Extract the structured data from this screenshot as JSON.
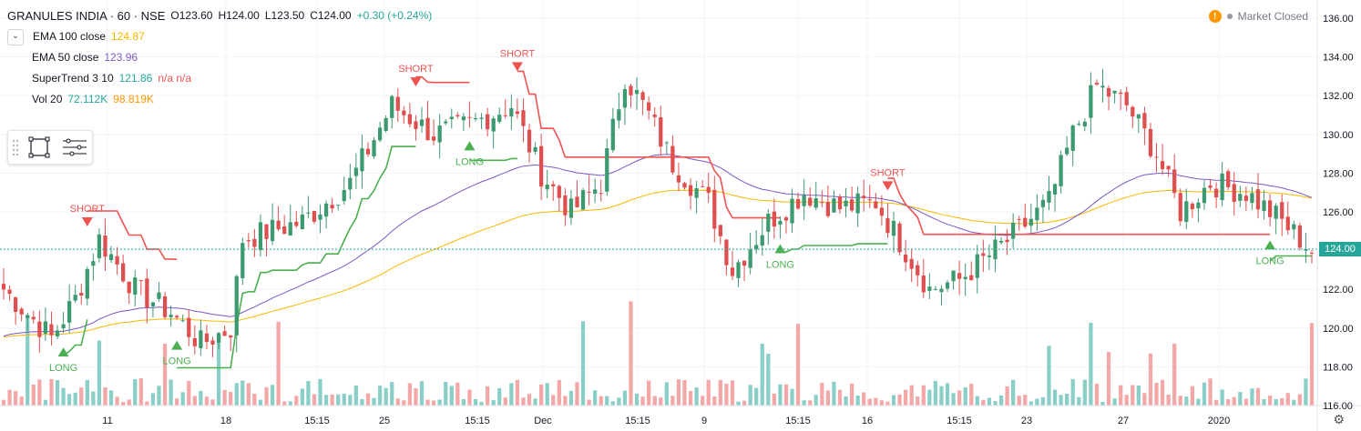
{
  "header": {
    "symbol": "GRANULES INDIA · 60 · NSE",
    "open": "O123.60",
    "high": "H124.00",
    "low": "L123.50",
    "close": "C124.00",
    "change": "+0.30 (+0.24%)"
  },
  "status": {
    "text": "Market Closed"
  },
  "indicators": [
    {
      "name": "EMA 100 close",
      "value": "124.87",
      "color": "#f5b800"
    },
    {
      "name": "EMA 50 close",
      "value": "123.96",
      "color": "#7e57c2"
    },
    {
      "name": "SuperTrend 3 10",
      "value": "121.86",
      "extra": "n/a n/a",
      "color": "#26a69a"
    },
    {
      "name": "Vol 20",
      "value": "72.112K",
      "extra": "98.819K",
      "color": "#26a69a"
    }
  ],
  "last_price_label": "124.00",
  "colors": {
    "up": "#3d9970",
    "down": "#e04f4f",
    "ema100": "#f5b800",
    "ema50": "#7e57c2",
    "st_up": "#4caf50",
    "st_down": "#ef5350",
    "vol_up": "#89cfc8",
    "vol_down": "#f4a7a7"
  },
  "chart_data": {
    "type": "candlestick",
    "title": "GRANULES INDIA · 60 · NSE",
    "ylim": [
      116,
      136.5
    ],
    "y_ticks": [
      "116.00",
      "118.00",
      "120.00",
      "122.00",
      "124.00",
      "126.00",
      "128.00",
      "130.00",
      "132.00",
      "134.00",
      "136.00"
    ],
    "x_ticks": [
      "11",
      "18",
      "15:15",
      "25",
      "15:15",
      "Dec",
      "15:15",
      "9",
      "15:15",
      "16",
      "15:15",
      "23",
      "27",
      "2020"
    ],
    "bars_count": 220,
    "anchor_closes": [
      [
        0,
        122.0
      ],
      [
        8,
        119.5
      ],
      [
        12,
        121.5
      ],
      [
        16,
        124.6
      ],
      [
        22,
        122.0
      ],
      [
        28,
        120.8
      ],
      [
        33,
        119.2
      ],
      [
        38,
        120.0
      ],
      [
        40,
        124.6
      ],
      [
        50,
        125.5
      ],
      [
        58,
        127.5
      ],
      [
        65,
        131.5
      ],
      [
        72,
        130.0
      ],
      [
        78,
        130.5
      ],
      [
        85,
        131.5
      ],
      [
        90,
        128.0
      ],
      [
        95,
        126.0
      ],
      [
        100,
        127.5
      ],
      [
        104,
        133.0
      ],
      [
        108,
        131.0
      ],
      [
        112,
        128.5
      ],
      [
        118,
        126.5
      ],
      [
        122,
        123.0
      ],
      [
        128,
        125.5
      ],
      [
        134,
        127.0
      ],
      [
        140,
        126.2
      ],
      [
        146,
        126.5
      ],
      [
        150,
        124.5
      ],
      [
        155,
        122.0
      ],
      [
        160,
        122.5
      ],
      [
        168,
        124.5
      ],
      [
        175,
        126.5
      ],
      [
        179,
        130.0
      ],
      [
        183,
        132.5
      ],
      [
        188,
        131.5
      ],
      [
        193,
        129.0
      ],
      [
        197,
        126.0
      ],
      [
        202,
        127.5
      ],
      [
        208,
        127.0
      ],
      [
        214,
        125.5
      ],
      [
        219,
        124.0
      ]
    ],
    "supertrend_markers": [
      {
        "label": "LONG",
        "bar": 10,
        "direction": "up"
      },
      {
        "label": "SHORT",
        "bar": 14,
        "direction": "down"
      },
      {
        "label": "LONG",
        "bar": 29,
        "direction": "up"
      },
      {
        "label": "SHORT",
        "bar": 69,
        "direction": "down"
      },
      {
        "label": "LONG",
        "bar": 78,
        "direction": "up"
      },
      {
        "label": "SHORT",
        "bar": 86,
        "direction": "down"
      },
      {
        "label": "LONG",
        "bar": 130,
        "direction": "up"
      },
      {
        "label": "SHORT",
        "bar": 148,
        "direction": "down"
      },
      {
        "label": "LONG",
        "bar": 212,
        "direction": "up"
      }
    ]
  }
}
